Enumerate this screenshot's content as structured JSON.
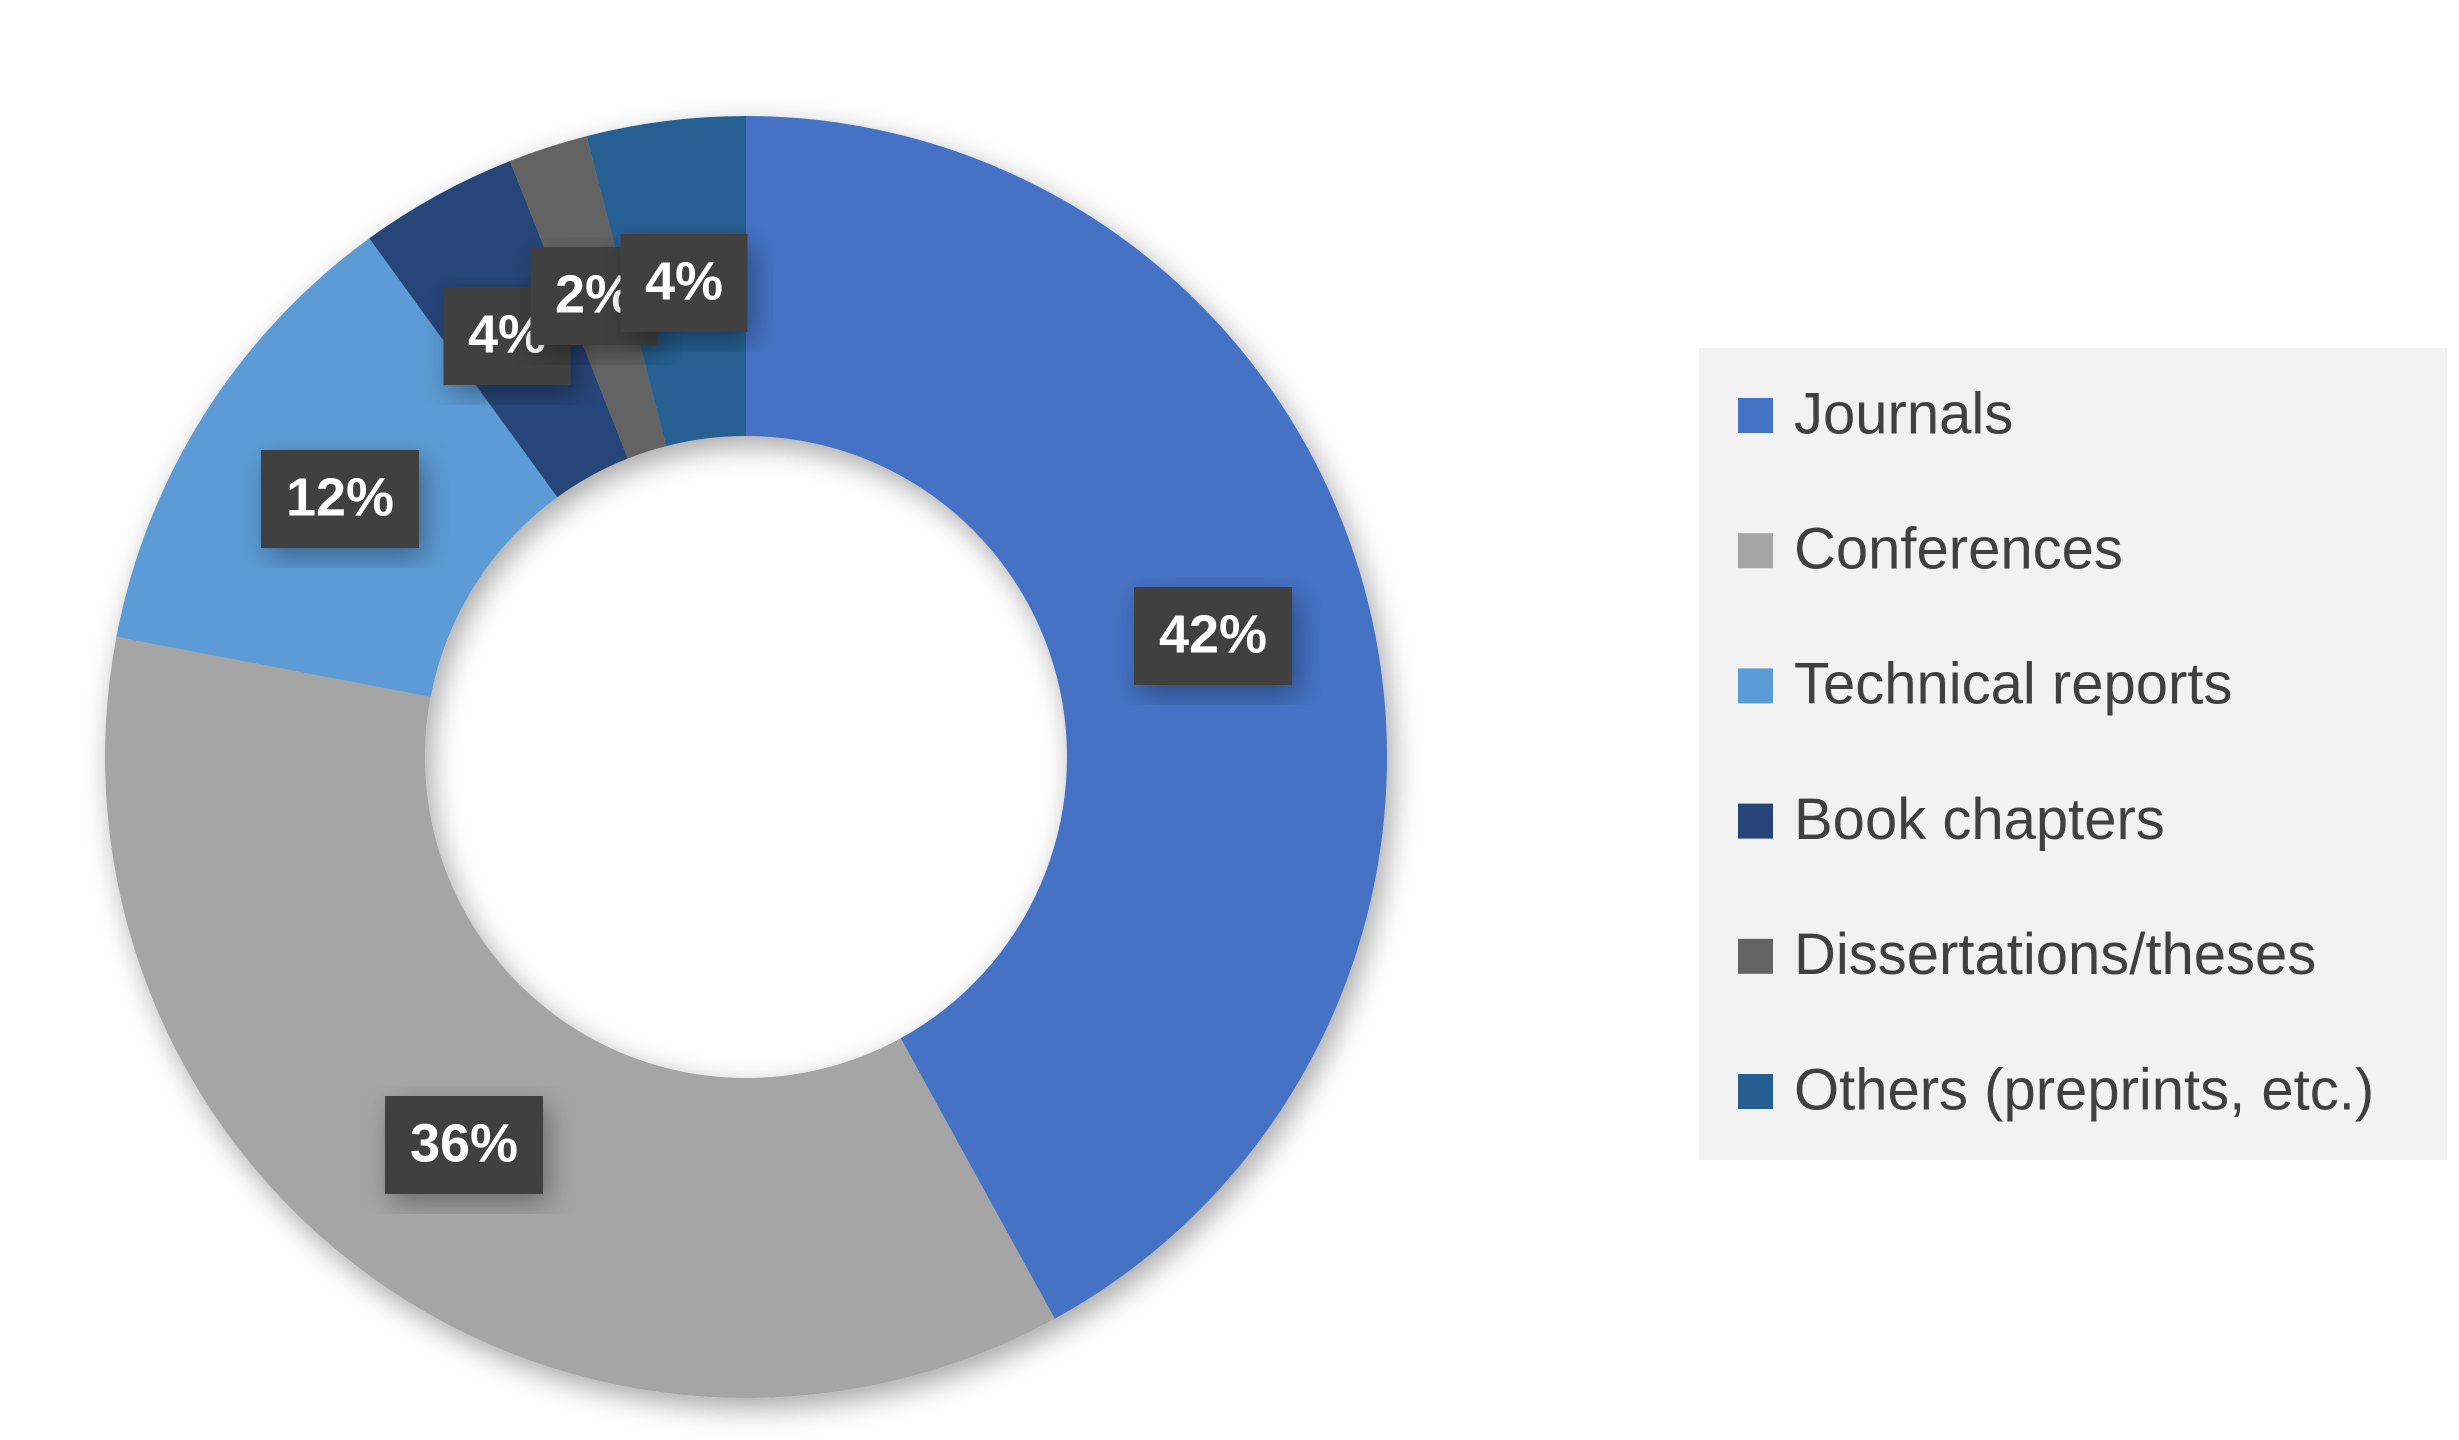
{
  "chart_data": {
    "type": "pie",
    "categories": [
      "Journals",
      "Conferences",
      "Technical reports",
      "Book chapters",
      "Dissertations/theses",
      "Others (preprints, etc.)"
    ],
    "values": [
      42,
      36,
      12,
      4,
      2,
      4
    ],
    "value_labels": [
      "42%",
      "36%",
      "12%",
      "4%",
      "2%",
      "4%"
    ],
    "colors": [
      "#4472c4",
      "#a5a5a5",
      "#5b9bd5",
      "#264478",
      "#636363",
      "#255e91"
    ],
    "legend": "right"
  }
}
